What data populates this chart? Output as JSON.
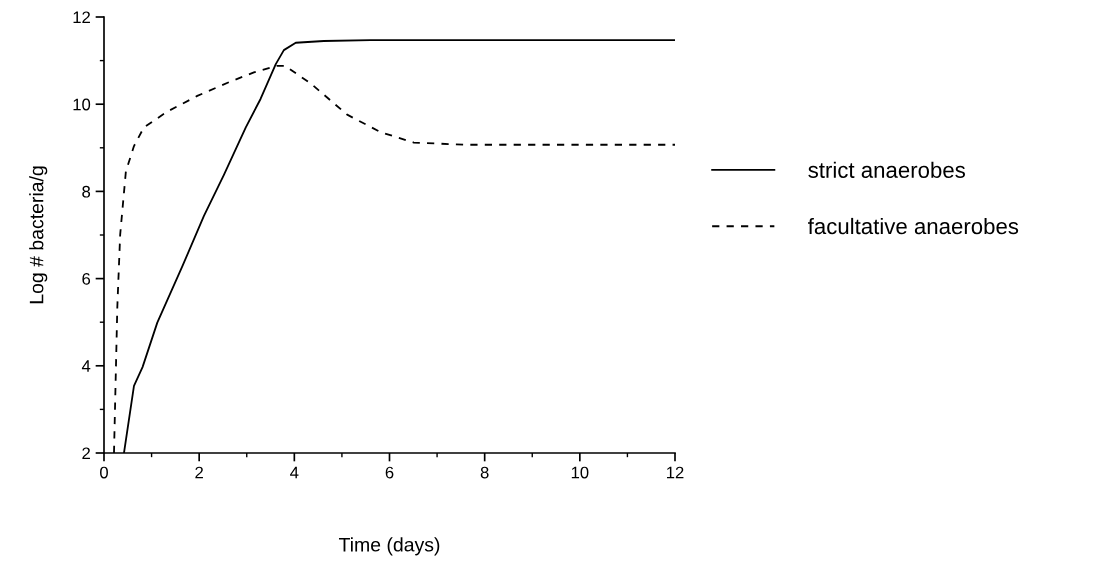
{
  "chart_data": {
    "type": "line",
    "xlabel": "Time (days)",
    "ylabel": "Log # bacteria/g",
    "xlim": [
      0,
      12
    ],
    "ylim": [
      2,
      12
    ],
    "xticks": [
      0,
      2,
      4,
      6,
      8,
      10,
      12
    ],
    "yticks": [
      2,
      4,
      6,
      8,
      10,
      12
    ],
    "grid": false,
    "legend": "right",
    "marker": "none",
    "series": [
      {
        "name": "strict anaerobes",
        "color": "#000000",
        "line_style": "solid",
        "x": [
          0.42,
          0.63,
          0.81,
          1.12,
          1.65,
          2.1,
          2.52,
          2.98,
          3.29,
          3.61,
          3.78,
          4.03,
          4.62,
          5.6,
          12
        ],
        "values": [
          2.0,
          3.54,
          3.97,
          4.99,
          6.29,
          7.44,
          8.38,
          9.47,
          10.12,
          10.92,
          11.24,
          11.41,
          11.45,
          11.47,
          11.47
        ]
      },
      {
        "name": "facultative anaerobes",
        "color": "#000000",
        "line_style": "dashed",
        "x": [
          0.21,
          0.28,
          0.34,
          0.46,
          0.63,
          0.84,
          1.33,
          1.96,
          2.66,
          3.15,
          3.64,
          3.8,
          4.34,
          5.11,
          5.81,
          6.51,
          7.56,
          12
        ],
        "values": [
          2.0,
          5.35,
          7.01,
          8.46,
          9.04,
          9.47,
          9.83,
          10.19,
          10.52,
          10.73,
          10.88,
          10.88,
          10.48,
          9.76,
          9.36,
          9.12,
          9.07,
          9.07
        ]
      }
    ]
  }
}
